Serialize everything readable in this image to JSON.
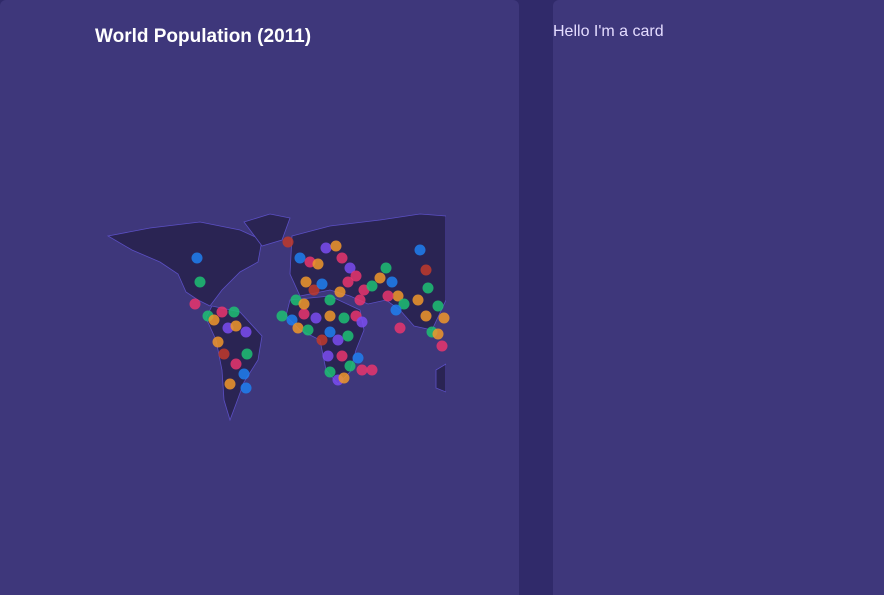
{
  "left_card": {
    "title": "World Population (2011)"
  },
  "right_card": {
    "text": "Hello I'm a card"
  }
}
